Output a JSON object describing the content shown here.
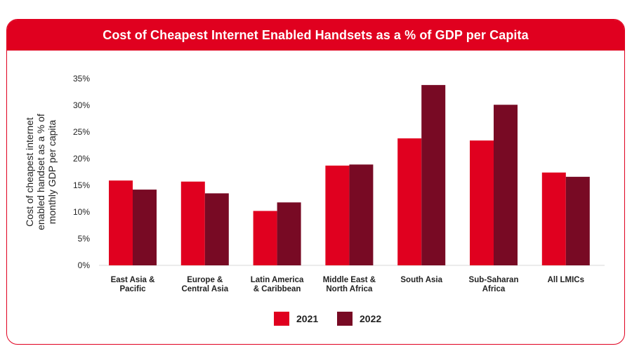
{
  "chart_data": {
    "type": "bar",
    "title": "Cost of Cheapest Internet Enabled Handsets as a % of GDP per Capita",
    "ylabel": [
      "Cost of cheapest internet",
      "enabled handset as a % of",
      "monthly GDP per capita"
    ],
    "ylim": [
      0,
      35
    ],
    "yticks": [
      0,
      5,
      10,
      15,
      20,
      25,
      30,
      35
    ],
    "ytick_labels": [
      "0%",
      "5%",
      "10%",
      "15%",
      "20%",
      "25%",
      "30%",
      "35%"
    ],
    "grid": false,
    "legend_position": "bottom-center",
    "categories": [
      [
        "East Asia &",
        "Pacific"
      ],
      [
        "Europe &",
        "Central Asia"
      ],
      [
        "Latin America",
        "& Caribbean"
      ],
      [
        "Middle East &",
        "North Africa"
      ],
      [
        "South Asia"
      ],
      [
        "Sub-Saharan",
        "Africa"
      ],
      [
        "All LMICs"
      ]
    ],
    "series": [
      {
        "name": "2021",
        "color": "#e0001f",
        "values": [
          15.9,
          15.7,
          10.2,
          18.7,
          23.8,
          23.4,
          17.4
        ]
      },
      {
        "name": "2022",
        "color": "#780a24",
        "values": [
          14.2,
          13.5,
          11.8,
          18.9,
          33.8,
          30.1,
          16.6
        ]
      }
    ]
  }
}
